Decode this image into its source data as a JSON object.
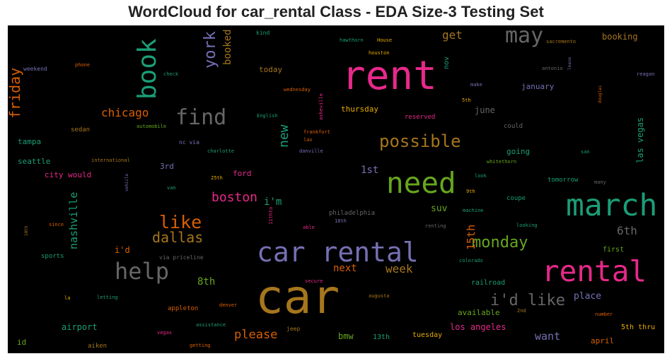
{
  "chart_data": {
    "type": "wordcloud",
    "title": "WordCloud for car_rental Class - EDA Size-3 Testing Set",
    "background": "#000000",
    "palette": [
      "#1b9e77",
      "#d95f02",
      "#7570b3",
      "#e7298a",
      "#66a61e",
      "#e6ab02",
      "#a6761d",
      "#666666"
    ],
    "words": [
      {
        "text": "car",
        "weight": 100,
        "color": "#a6761d"
      },
      {
        "text": "rent",
        "weight": 86,
        "color": "#e7298a"
      },
      {
        "text": "march",
        "weight": 65,
        "color": "#1b9e77"
      },
      {
        "text": "need",
        "weight": 63,
        "color": "#66a61e"
      },
      {
        "text": "rental",
        "weight": 63,
        "color": "#e7298a"
      },
      {
        "text": "car rental",
        "weight": 60,
        "color": "#7570b3"
      },
      {
        "text": "book",
        "weight": 55,
        "color": "#1b9e77"
      },
      {
        "text": "help",
        "weight": 51,
        "color": "#666666"
      },
      {
        "text": "may",
        "weight": 47,
        "color": "#666666"
      },
      {
        "text": "find",
        "weight": 47,
        "color": "#666666"
      },
      {
        "text": "like",
        "weight": 38,
        "color": "#d95f02"
      },
      {
        "text": "possible",
        "weight": 38,
        "color": "#a6761d"
      },
      {
        "text": "i'd like",
        "weight": 35,
        "color": "#666666"
      },
      {
        "text": "monday",
        "weight": 34,
        "color": "#66a61e"
      },
      {
        "text": "york",
        "weight": 34,
        "color": "#7570b3"
      },
      {
        "text": "dallas",
        "weight": 31,
        "color": "#a6761d"
      },
      {
        "text": "friday",
        "weight": 30,
        "color": "#d95f02"
      },
      {
        "text": "new",
        "weight": 28,
        "color": "#1b9e77"
      },
      {
        "text": "boston",
        "weight": 27,
        "color": "#e7298a"
      },
      {
        "text": "chicago",
        "weight": 26,
        "color": "#d95f02"
      },
      {
        "text": "please",
        "weight": 26,
        "color": "#d95f02"
      },
      {
        "text": "get",
        "weight": 25,
        "color": "#a6761d"
      },
      {
        "text": "15th",
        "weight": 24,
        "color": "#d95f02"
      },
      {
        "text": "6th",
        "weight": 24,
        "color": "#666666"
      },
      {
        "text": "week",
        "weight": 24,
        "color": "#a6761d"
      },
      {
        "text": "nashville",
        "weight": 23,
        "color": "#1b9e77"
      },
      {
        "text": "want",
        "weight": 23,
        "color": "#7570b3"
      },
      {
        "text": "booked",
        "weight": 22,
        "color": "#a6761d"
      },
      {
        "text": "i'm",
        "weight": 22,
        "color": "#1b9e77"
      },
      {
        "text": "1st",
        "weight": 22,
        "color": "#7570b3"
      },
      {
        "text": "next",
        "weight": 21,
        "color": "#d95f02"
      },
      {
        "text": "8th",
        "weight": 21,
        "color": "#66a61e"
      },
      {
        "text": "place",
        "weight": 20,
        "color": "#7570b3"
      },
      {
        "text": "suv",
        "weight": 20,
        "color": "#66a61e"
      },
      {
        "text": "las vegas",
        "weight": 18,
        "color": "#1b9e77"
      },
      {
        "text": "booking",
        "weight": 18,
        "color": "#a6761d"
      },
      {
        "text": "los angeles",
        "weight": 18,
        "color": "#e7298a"
      },
      {
        "text": "airport",
        "weight": 18,
        "color": "#1b9e77"
      },
      {
        "text": "june",
        "weight": 18,
        "color": "#666666"
      },
      {
        "text": "bmw",
        "weight": 18,
        "color": "#66a61e"
      },
      {
        "text": "i'd",
        "weight": 18,
        "color": "#d95f02"
      },
      {
        "text": "thursday",
        "weight": 17,
        "color": "#e6ab02"
      },
      {
        "text": "ford",
        "weight": 17,
        "color": "#e7298a"
      },
      {
        "text": "city would",
        "weight": 17,
        "color": "#e7298a"
      },
      {
        "text": "january",
        "weight": 16,
        "color": "#7570b3"
      },
      {
        "text": "april",
        "weight": 16,
        "color": "#d95f02"
      },
      {
        "text": "available",
        "weight": 16,
        "color": "#66a61e"
      },
      {
        "text": "seattle",
        "weight": 16,
        "color": "#1b9e77"
      },
      {
        "text": "tampa",
        "weight": 16,
        "color": "#1b9e77"
      },
      {
        "text": "today",
        "weight": 16,
        "color": "#a6761d"
      },
      {
        "text": "going",
        "weight": 16,
        "color": "#1b9e77"
      },
      {
        "text": "id",
        "weight": 16,
        "color": "#66a61e"
      },
      {
        "text": "3rd",
        "weight": 16,
        "color": "#7570b3"
      },
      {
        "text": "railroad",
        "weight": 15,
        "color": "#1b9e77"
      },
      {
        "text": "5th thru",
        "weight": 15,
        "color": "#e6ab02"
      },
      {
        "text": "nov",
        "weight": 14,
        "color": "#1b9e77"
      },
      {
        "text": "tuesday",
        "weight": 14,
        "color": "#e6ab02"
      },
      {
        "text": "13th",
        "weight": 14,
        "color": "#1b9e77"
      },
      {
        "text": "first",
        "weight": 13,
        "color": "#66a61e"
      },
      {
        "text": "sedan",
        "weight": 13,
        "color": "#a6761d"
      },
      {
        "text": "tomorrow",
        "weight": 13,
        "color": "#1b9e77"
      },
      {
        "text": "coupe",
        "weight": 13,
        "color": "#1b9e77"
      },
      {
        "text": "could",
        "weight": 13,
        "color": "#666666"
      },
      {
        "text": "reserved",
        "weight": 13,
        "color": "#e7298a"
      },
      {
        "text": "sports",
        "weight": 13,
        "color": "#1b9e77"
      },
      {
        "text": "appleton",
        "weight": 13,
        "color": "#d95f02"
      },
      {
        "text": "aiken",
        "weight": 13,
        "color": "#a6761d"
      },
      {
        "text": "philadelphia",
        "weight": 13,
        "color": "#666666"
      },
      {
        "text": "weekend",
        "weight": 12,
        "color": "#7570b3"
      },
      {
        "text": "kind",
        "weight": 12,
        "color": "#1b9e77"
      },
      {
        "text": "via priceline",
        "weight": 12,
        "color": "#666666"
      },
      {
        "text": "jeep",
        "weight": 12,
        "color": "#a6761d"
      },
      {
        "text": "nc via",
        "weight": 12,
        "color": "#7570b3"
      },
      {
        "text": "looking",
        "weight": 11,
        "color": "#1b9e77"
      },
      {
        "text": "9th",
        "weight": 11,
        "color": "#e6ab02"
      },
      {
        "text": "asheville",
        "weight": 11,
        "color": "#e7298a"
      },
      {
        "text": "11thto",
        "weight": 10,
        "color": "#e7298a"
      },
      {
        "text": "charlotte",
        "weight": 10,
        "color": "#1b9e77"
      },
      {
        "text": "danville",
        "weight": 10,
        "color": "#7570b3"
      },
      {
        "text": "frankfort",
        "weight": 10,
        "color": "#d95f02"
      },
      {
        "text": "lax",
        "weight": 10,
        "color": "#d95f02"
      },
      {
        "text": "English",
        "weight": 10,
        "color": "#1b9e77"
      },
      {
        "text": "automobile",
        "weight": 10,
        "color": "#66a61e"
      },
      {
        "text": "international",
        "weight": 10,
        "color": "#a6761d"
      },
      {
        "text": "hawthorn",
        "weight": 10,
        "color": "#1b9e77"
      },
      {
        "text": "House",
        "weight": 10,
        "color": "#e6ab02"
      },
      {
        "text": "houston",
        "weight": 10,
        "color": "#e6ab02"
      },
      {
        "text": "sacremento",
        "weight": 10,
        "color": "#a6761d"
      },
      {
        "text": "antonio",
        "weight": 10,
        "color": "#666666"
      },
      {
        "text": "reagan",
        "weight": 10,
        "color": "#7570b3"
      },
      {
        "text": "lease",
        "weight": 9,
        "color": "#7570b3"
      },
      {
        "text": "douglas",
        "weight": 9,
        "color": "#d95f02"
      },
      {
        "text": "make",
        "weight": 9,
        "color": "#7570b3"
      },
      {
        "text": "5th",
        "weight": 9,
        "color": "#e6ab02"
      },
      {
        "text": "wednesday",
        "weight": 9,
        "color": "#d95f02"
      },
      {
        "text": "check",
        "weight": 9,
        "color": "#1b9e77"
      },
      {
        "text": "phone",
        "weight": 9,
        "color": "#d95f02"
      },
      {
        "text": "whitethorn",
        "weight": 9,
        "color": "#66a61e"
      },
      {
        "text": "look",
        "weight": 9,
        "color": "#1b9e77"
      },
      {
        "text": "san",
        "weight": 9,
        "color": "#1b9e77"
      },
      {
        "text": "many",
        "weight": 9,
        "color": "#666666"
      },
      {
        "text": "25th",
        "weight": 9,
        "color": "#e6ab02"
      },
      {
        "text": "van",
        "weight": 9,
        "color": "#1b9e77"
      },
      {
        "text": "machine",
        "weight": 9,
        "color": "#1b9e77"
      },
      {
        "text": "renting",
        "weight": 9,
        "color": "#666666"
      },
      {
        "text": "18th",
        "weight": 9,
        "color": "#7570b3"
      },
      {
        "text": "since",
        "weight": 9,
        "color": "#d95f02"
      },
      {
        "text": "able",
        "weight": 9,
        "color": "#e7298a"
      },
      {
        "text": "colorado",
        "weight": 9,
        "color": "#1b9e77"
      },
      {
        "text": "secure",
        "weight": 9,
        "color": "#e7298a"
      },
      {
        "text": "letting",
        "weight": 9,
        "color": "#1b9e77"
      },
      {
        "text": "la",
        "weight": 9,
        "color": "#e6ab02"
      },
      {
        "text": "denver",
        "weight": 9,
        "color": "#d95f02"
      },
      {
        "text": "augusta",
        "weight": 9,
        "color": "#a6761d"
      },
      {
        "text": "2nd",
        "weight": 9,
        "color": "#a6761d"
      },
      {
        "text": "number",
        "weight": 9,
        "color": "#d95f02"
      },
      {
        "text": "assistance",
        "weight": 9,
        "color": "#1b9e77"
      },
      {
        "text": "vegas",
        "weight": 9,
        "color": "#e7298a"
      },
      {
        "text": "getting",
        "weight": 9,
        "color": "#d95f02"
      },
      {
        "text": "vehicle",
        "weight": 8,
        "color": "#7570b3"
      },
      {
        "text": "10th",
        "weight": 8,
        "color": "#a6761d"
      }
    ]
  }
}
